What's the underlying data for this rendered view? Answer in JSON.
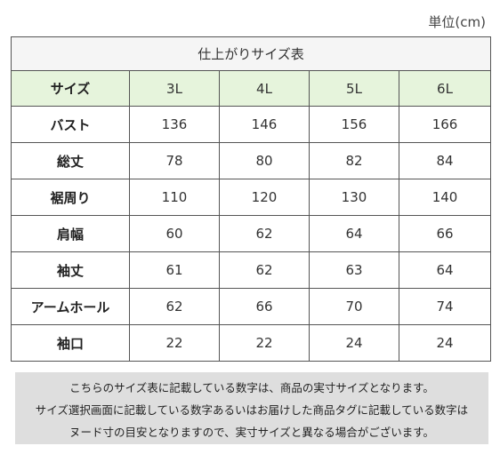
{
  "unit": "単位(cm)",
  "table": {
    "title": "仕上がりサイズ表",
    "corner_label": "サイズ",
    "sizes": [
      "3L",
      "4L",
      "5L",
      "6L"
    ],
    "rows": [
      {
        "label": "バスト",
        "values": [
          "136",
          "146",
          "156",
          "166"
        ]
      },
      {
        "label": "総丈",
        "values": [
          "78",
          "80",
          "82",
          "84"
        ]
      },
      {
        "label": "裾周り",
        "values": [
          "110",
          "120",
          "130",
          "140"
        ]
      },
      {
        "label": "肩幅",
        "values": [
          "60",
          "62",
          "64",
          "66"
        ]
      },
      {
        "label": "袖丈",
        "values": [
          "61",
          "62",
          "63",
          "64"
        ]
      },
      {
        "label": "アームホール",
        "values": [
          "62",
          "66",
          "70",
          "74"
        ]
      },
      {
        "label": "袖口",
        "values": [
          "22",
          "22",
          "24",
          "24"
        ]
      }
    ]
  },
  "note": {
    "lines": [
      "こちらのサイズ表に記載している数字は、商品の実寸サイズとなります。",
      "サイズ選択画面に記載している数字あるいはお届けした商品タグに記載している数字は",
      "ヌード寸の目安となりますので、実寸サイズと異なる場合がございます。"
    ]
  },
  "colors": {
    "header_bg": "#e6f4dc",
    "title_bg": "#f5f5f5",
    "note_bg": "#dedede",
    "border": "#555555"
  }
}
